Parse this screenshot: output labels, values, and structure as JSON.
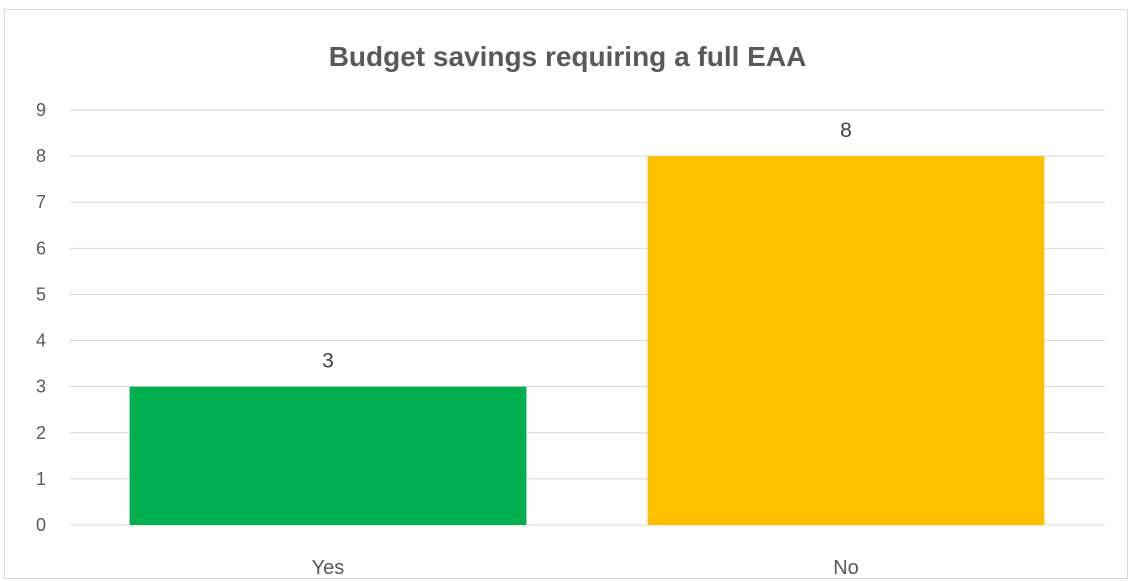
{
  "chart_data": {
    "type": "bar",
    "title": "Budget savings requiring a full EAA",
    "categories": [
      "Yes",
      "No"
    ],
    "values": [
      3,
      8
    ],
    "colors": [
      "#00b050",
      "#ffc000"
    ],
    "ylim": [
      0,
      9
    ],
    "yticks": [
      0,
      1,
      2,
      3,
      4,
      5,
      6,
      7,
      8,
      9
    ],
    "grid": true,
    "data_labels": true,
    "legend": "none",
    "xlabel": "",
    "ylabel": ""
  }
}
